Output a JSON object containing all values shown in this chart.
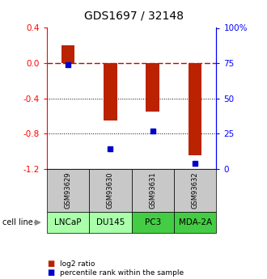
{
  "title": "GDS1697 / 32148",
  "samples": [
    "GSM93629",
    "GSM93630",
    "GSM93631",
    "GSM93632"
  ],
  "cell_lines": [
    "LNCaP",
    "DU145",
    "PC3",
    "MDA-2A"
  ],
  "log2_ratios": [
    0.2,
    -0.65,
    -0.55,
    -1.05
  ],
  "percentile_ranks": [
    74,
    14,
    27,
    4
  ],
  "ylim_left": [
    -1.2,
    0.4
  ],
  "ylim_right": [
    0,
    100
  ],
  "left_ticks": [
    0.4,
    0.0,
    -0.4,
    -0.8,
    -1.2
  ],
  "right_ticks": [
    0,
    25,
    50,
    75,
    100
  ],
  "right_tick_labels": [
    "0",
    "25",
    "50",
    "75",
    "100%"
  ],
  "bar_color": "#bb2200",
  "dot_color": "#0000cc",
  "gsm_box_color": "#c8c8c8",
  "cell_line_colors": [
    "#aaffaa",
    "#aaffaa",
    "#44cc44",
    "#44cc44"
  ],
  "background_color": "#ffffff",
  "zero_line_color": "#cc0000",
  "grid_color": "#000000",
  "title_fontsize": 10,
  "tick_fontsize": 7.5,
  "cell_fontsize": 7.5,
  "gsm_fontsize": 6
}
